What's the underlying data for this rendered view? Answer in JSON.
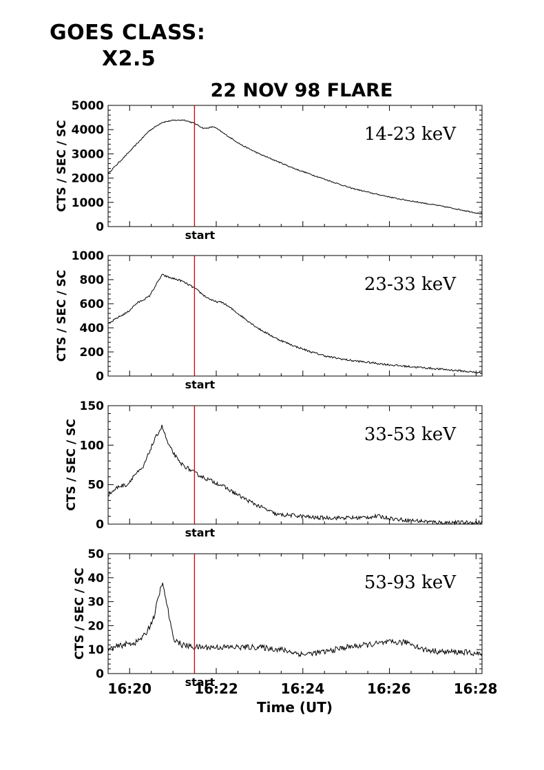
{
  "header": {
    "goes_line1": "GOES CLASS:",
    "goes_line2": "X2.5"
  },
  "chart_data": {
    "type": "line",
    "title": "22 NOV 98 FLARE",
    "xlabel": "Time (UT)",
    "xlim": [
      16.325,
      16.4692
    ],
    "x_ticks": [
      16.3333,
      16.3667,
      16.4,
      16.4333,
      16.4667
    ],
    "x_tick_labels": [
      "16:20",
      "16:22",
      "16:24",
      "16:26",
      "16:28"
    ],
    "marker_time": 16.3583,
    "marker_label": "start",
    "marker_color": "#cc0000",
    "panels": [
      {
        "name": "14-23 keV",
        "ylabel": "CTS / SEC / SC",
        "ylim": [
          0,
          5000
        ],
        "yticks": [
          0,
          1000,
          2000,
          3000,
          4000,
          5000
        ],
        "noise": 25,
        "x": [
          16.325,
          16.3267,
          16.3292,
          16.3333,
          16.3358,
          16.3408,
          16.3458,
          16.35,
          16.3542,
          16.3583,
          16.3617,
          16.3625,
          16.3658,
          16.3708,
          16.3767,
          16.3833,
          16.39,
          16.3967,
          16.4033,
          16.41,
          16.4183,
          16.4267,
          16.4367,
          16.445,
          16.4517,
          16.4583,
          16.4692
        ],
        "values": [
          2180,
          2380,
          2650,
          3100,
          3380,
          3950,
          4300,
          4380,
          4400,
          4260,
          4060,
          4050,
          4120,
          3760,
          3350,
          3000,
          2700,
          2400,
          2150,
          1900,
          1600,
          1380,
          1150,
          1000,
          880,
          750,
          520
        ]
      },
      {
        "name": "23-33 keV",
        "ylabel": "CTS / SEC / SC",
        "ylim": [
          0,
          1000
        ],
        "yticks": [
          0,
          200,
          400,
          600,
          800,
          1000
        ],
        "noise": 8,
        "x": [
          16.325,
          16.3283,
          16.3325,
          16.3358,
          16.3408,
          16.3458,
          16.3483,
          16.3533,
          16.3583,
          16.3625,
          16.3658,
          16.3692,
          16.3725,
          16.3775,
          16.3833,
          16.39,
          16.3967,
          16.4033,
          16.41,
          16.4183,
          16.4267,
          16.435,
          16.4433,
          16.4517,
          16.46,
          16.4692
        ],
        "values": [
          430,
          480,
          530,
          600,
          660,
          840,
          820,
          790,
          730,
          660,
          620,
          610,
          560,
          480,
          390,
          310,
          250,
          200,
          160,
          130,
          110,
          90,
          75,
          60,
          45,
          25
        ]
      },
      {
        "name": "33-53 keV",
        "ylabel": "CTS / SEC / SC",
        "ylim": [
          0,
          150
        ],
        "yticks": [
          0,
          50,
          100,
          150
        ],
        "noise": 2.5,
        "x": [
          16.325,
          16.3292,
          16.3325,
          16.335,
          16.3383,
          16.3417,
          16.3442,
          16.3458,
          16.3483,
          16.3525,
          16.3583,
          16.3625,
          16.3683,
          16.375,
          16.38,
          16.385,
          16.39,
          16.3967,
          16.405,
          16.4133,
          16.4217,
          16.4292,
          16.4367,
          16.445,
          16.4533,
          16.4692
        ],
        "values": [
          37,
          48,
          50,
          62,
          70,
          98,
          115,
          124,
          100,
          78,
          65,
          58,
          50,
          37,
          28,
          20,
          12,
          11,
          8,
          8,
          8,
          10,
          6,
          4,
          2,
          2
        ]
      },
      {
        "name": "53-93 keV",
        "ylabel": "CTS / SEC / SC",
        "ylim": [
          0,
          50
        ],
        "yticks": [
          0,
          10,
          20,
          30,
          40,
          50
        ],
        "noise": 1.2,
        "x": [
          16.325,
          16.3308,
          16.3358,
          16.3392,
          16.3425,
          16.3458,
          16.3475,
          16.35,
          16.3533,
          16.3583,
          16.3667,
          16.375,
          16.3833,
          16.3917,
          16.4,
          16.4083,
          16.4167,
          16.425,
          16.4333,
          16.4408,
          16.4467,
          16.4542,
          16.4617,
          16.4692
        ],
        "values": [
          10,
          12,
          13,
          16,
          23,
          38,
          30,
          15,
          12,
          11,
          11,
          11,
          11,
          10,
          8,
          9,
          11,
          12,
          13,
          13,
          10,
          9,
          9,
          8
        ]
      }
    ]
  }
}
